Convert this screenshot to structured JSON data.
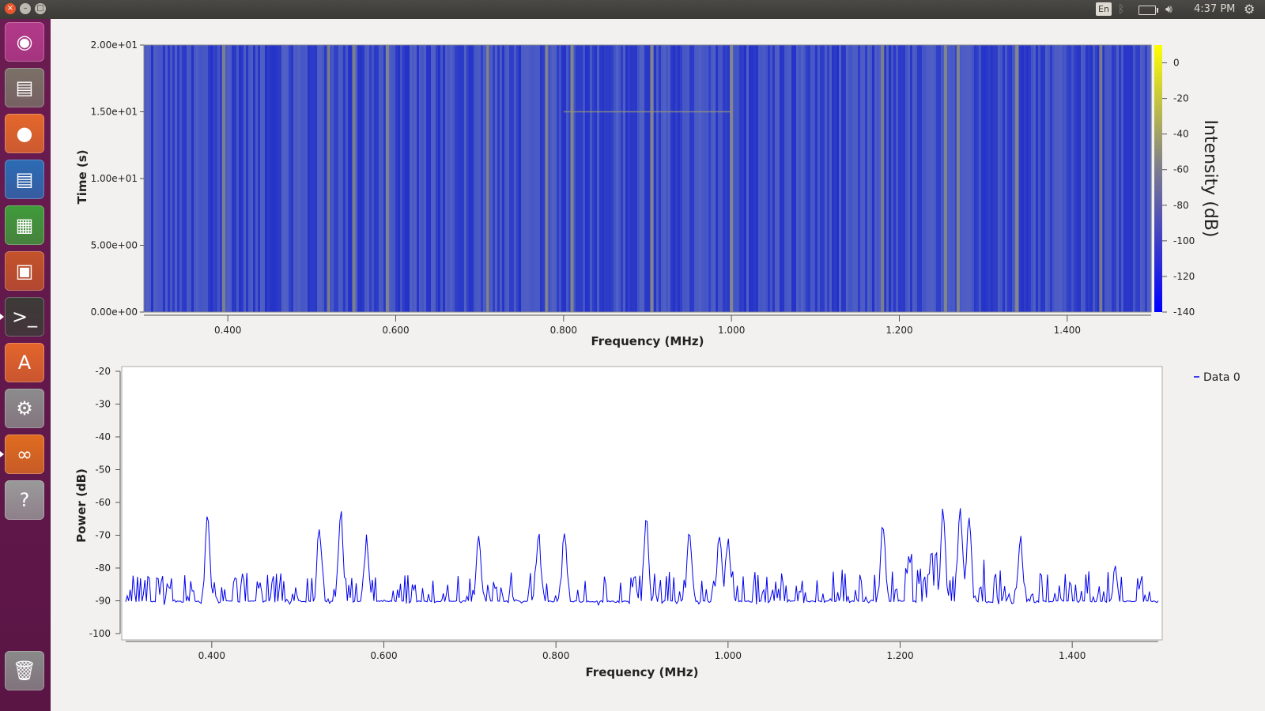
{
  "topbar": {
    "window_buttons": {
      "close_icon": "close-icon",
      "minimize_icon": "minimize-icon",
      "maximize_icon": "maximize-icon"
    },
    "keyboard_layout": "En",
    "clock": "4:37 PM",
    "icons": [
      "bluetooth-icon",
      "battery-icon",
      "volume-icon",
      "system-gear-icon"
    ]
  },
  "launcher": {
    "items": [
      {
        "name": "ubuntu-dash",
        "icon": "ubuntu-logo-icon",
        "color": "#b33a8a"
      },
      {
        "name": "files",
        "icon": "file-cabinet-icon",
        "color": "#7a7167"
      },
      {
        "name": "firefox",
        "icon": "firefox-icon",
        "color": "#e4682a"
      },
      {
        "name": "libreoffice-writer",
        "icon": "writer-document-icon",
        "color": "#2b6cb4"
      },
      {
        "name": "libreoffice-calc",
        "icon": "calc-spreadsheet-icon",
        "color": "#3f9b3a"
      },
      {
        "name": "libreoffice-impress",
        "icon": "impress-presentation-icon",
        "color": "#c4532a"
      },
      {
        "name": "terminal",
        "icon": "terminal-icon",
        "color": "#3c3b37"
      },
      {
        "name": "software-center",
        "icon": "shopping-bag-icon",
        "color": "#e3652a"
      },
      {
        "name": "system-settings",
        "icon": "wrench-gear-icon",
        "color": "#8c8c8c"
      },
      {
        "name": "gnuradio-companion",
        "icon": "gnuradio-icon",
        "color": "#e06c1f"
      },
      {
        "name": "help",
        "icon": "question-mark-icon",
        "color": "#9a9a9a"
      },
      {
        "name": "trash",
        "icon": "trash-icon",
        "color": "#8a8a8a"
      }
    ]
  },
  "chart_data": [
    {
      "type": "heatmap",
      "title": "",
      "xlabel": "Frequency (MHz)",
      "ylabel": "Time (s)",
      "xlim": [
        0.3,
        1.5
      ],
      "ylim": [
        0,
        20
      ],
      "xticks": [
        "0.400",
        "0.600",
        "0.800",
        "1.000",
        "1.200",
        "1.400"
      ],
      "yticks": [
        "0.00e+00",
        "5.00e+00",
        "1.00e+01",
        "1.50e+01",
        "2.00e+01"
      ],
      "colorbar": {
        "label": "Intensity (dB)",
        "range": [
          -140,
          10
        ],
        "ticks": [
          "0",
          "-20",
          "-40",
          "-60",
          "-80",
          "-100",
          "-120",
          "-140"
        ],
        "colors": [
          "#1010ff",
          "#7d7d90",
          "#ffff00"
        ]
      },
      "carriers_mhz": [
        0.395,
        0.52,
        0.55,
        0.59,
        0.71,
        0.78,
        0.81,
        0.905,
        1.0,
        1.18,
        1.255,
        1.27,
        1.34,
        1.44
      ],
      "background_color": "#3c4ec8"
    },
    {
      "type": "line",
      "title": "",
      "xlabel": "Frequency (MHz)",
      "ylabel": "Power (dB)",
      "xlim": [
        0.3,
        1.5
      ],
      "ylim": [
        -100,
        -20
      ],
      "xticks": [
        "0.400",
        "0.600",
        "0.800",
        "1.000",
        "1.200",
        "1.400"
      ],
      "yticks": [
        "-20",
        "-30",
        "-40",
        "-50",
        "-60",
        "-70",
        "-80",
        "-90",
        "-100"
      ],
      "legend": "top-right",
      "series": [
        {
          "name": "Data 0",
          "color": "#0000ee",
          "peaks": [
            [
              0.395,
              -65
            ],
            [
              0.525,
              -67
            ],
            [
              0.55,
              -64
            ],
            [
              0.58,
              -71
            ],
            [
              0.71,
              -72
            ],
            [
              0.78,
              -71
            ],
            [
              0.81,
              -70
            ],
            [
              0.905,
              -65
            ],
            [
              0.955,
              -70
            ],
            [
              0.99,
              -69
            ],
            [
              1.0,
              -71
            ],
            [
              1.18,
              -67
            ],
            [
              1.25,
              -63
            ],
            [
              1.27,
              -63
            ],
            [
              1.28,
              -64
            ],
            [
              1.34,
              -72
            ],
            [
              1.45,
              -80
            ]
          ],
          "noise_floor": -92
        }
      ]
    }
  ],
  "legend": {
    "label": "Data 0"
  }
}
